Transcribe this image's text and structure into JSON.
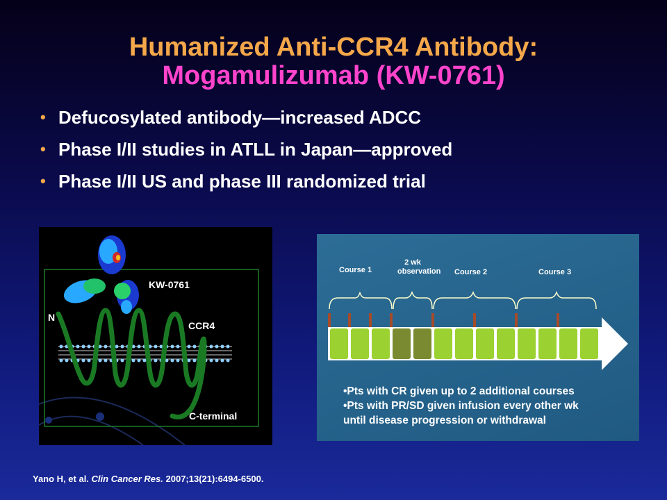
{
  "slide": {
    "title_line1": "Humanized Anti-CCR4 Antibody:",
    "title_line2": "Mogamulizumab (KW-0761)",
    "bullets": [
      "Defucosylated antibody—increased ADCC",
      "Phase I/II studies in ATLL in Japan—approved",
      "Phase I/II US and phase III randomized trial"
    ],
    "colors": {
      "title1": "#f5a84a",
      "title2": "#ff44cc",
      "bullet_marker": "#f5a84a"
    }
  },
  "left_figure": {
    "labels": {
      "antibody": "KW-0761",
      "n_terminal": "N",
      "receptor": "CCR4",
      "c_terminal": "C-terminal"
    }
  },
  "right_figure": {
    "course_labels": [
      "Course 1",
      "2 wk observation",
      "Course 2",
      "Course 3"
    ],
    "notes": [
      "•Pts with CR given up to 2 additional courses",
      "•Pts with PR/SD given infusion every other wk",
      "until disease progression or withdrawal"
    ]
  },
  "citation": {
    "authors": "Yano H, et al.",
    "journal": "Clin Cancer Res.",
    "details": "2007;13(21):6494-6500."
  }
}
